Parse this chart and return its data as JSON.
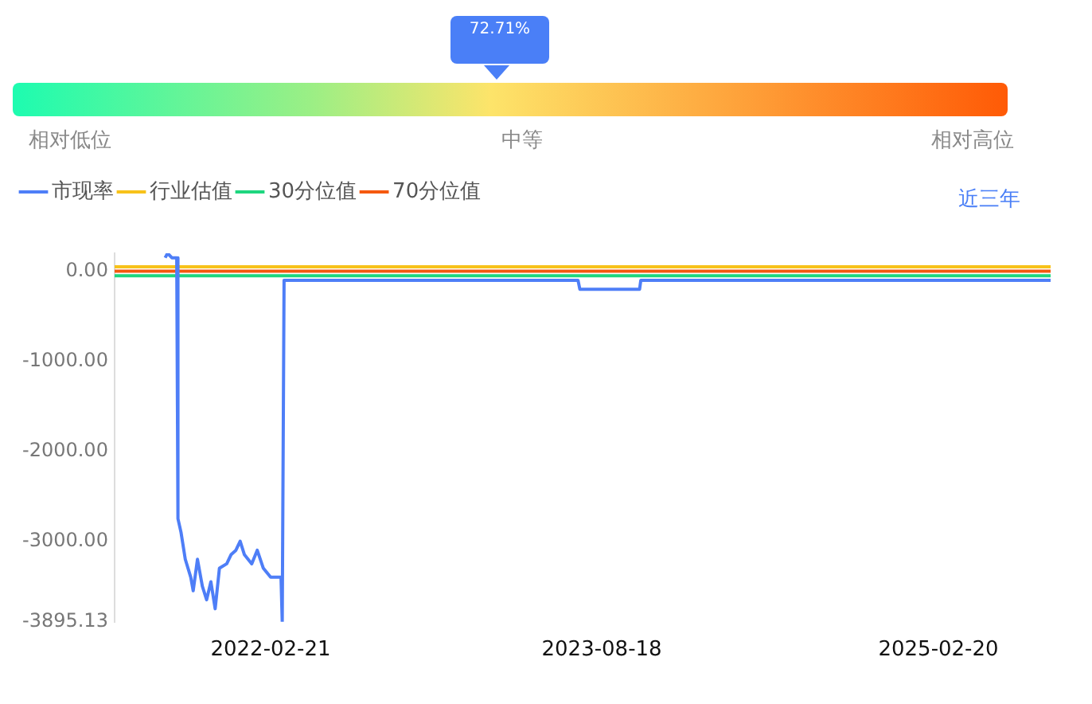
{
  "chart_data": [
    {
      "type": "other",
      "annotations": [
        "72.71%",
        "相对低位",
        "中等",
        "相对高位"
      ]
    },
    {
      "type": "line",
      "annotations": [
        "近三年"
      ],
      "legend": "top left",
      "grid": false,
      "marker": "none",
      "line_style": "solid",
      "xlim": [
        "2021-06-10",
        "2025-08-23"
      ],
      "xticks": [
        "2022-02-21",
        "2023-08-18",
        "2025-02-20"
      ],
      "ylim": [
        -3895.13,
        200
      ],
      "yticks": [
        {
          "value": 0,
          "label": "0.00"
        },
        {
          "value": -1000,
          "label": "-1000.00"
        },
        {
          "value": -2000,
          "label": "-2000.00"
        },
        {
          "value": -3000,
          "label": "-3000.00"
        },
        {
          "value": -3895.13,
          "label": "-3895.13"
        }
      ],
      "series": [
        {
          "name": "市现率",
          "color": "#4e7ef7",
          "x": [
            "2021-09-01",
            "2021-09-05",
            "2021-09-12",
            "2021-09-20",
            "2021-09-22",
            "2021-09-27",
            "2021-10-04",
            "2021-10-13",
            "2021-10-17",
            "2021-10-24",
            "2021-11-01",
            "2021-11-08",
            "2021-11-15",
            "2021-11-22",
            "2021-11-29",
            "2021-12-11",
            "2021-12-18",
            "2021-12-26",
            "2022-01-02",
            "2022-01-09",
            "2022-01-21",
            "2022-01-30",
            "2022-02-09",
            "2022-02-21",
            "2022-03-03",
            "2022-03-10",
            "2022-03-12",
            "2022-03-15",
            "2023-07-10",
            "2023-07-13",
            "2023-10-19",
            "2023-10-21",
            "2025-08-23"
          ],
          "values": [
            150,
            200,
            150,
            150,
            -2750,
            -2900,
            -3200,
            -3400,
            -3550,
            -3200,
            -3500,
            -3650,
            -3450,
            -3750,
            -3300,
            -3250,
            -3150,
            -3100,
            -3000,
            -3150,
            -3250,
            -3100,
            -3300,
            -3400,
            -3400,
            -3400,
            -3895.13,
            -100,
            -100,
            -200,
            -200,
            -100,
            -100
          ]
        },
        {
          "name": "行业估值",
          "color": "#f7c21a",
          "x": [
            "2021-06-10",
            "2025-08-23"
          ],
          "values": [
            50,
            50
          ]
        },
        {
          "name": "30分位值",
          "color": "#1ed67f",
          "x": [
            "2021-06-10",
            "2025-08-23"
          ],
          "values": [
            -50,
            -50
          ]
        },
        {
          "name": "70分位值",
          "color": "#f5590f",
          "x": [
            "2021-06-10",
            "2025-08-23"
          ],
          "values": [
            0,
            0
          ]
        }
      ]
    }
  ]
}
